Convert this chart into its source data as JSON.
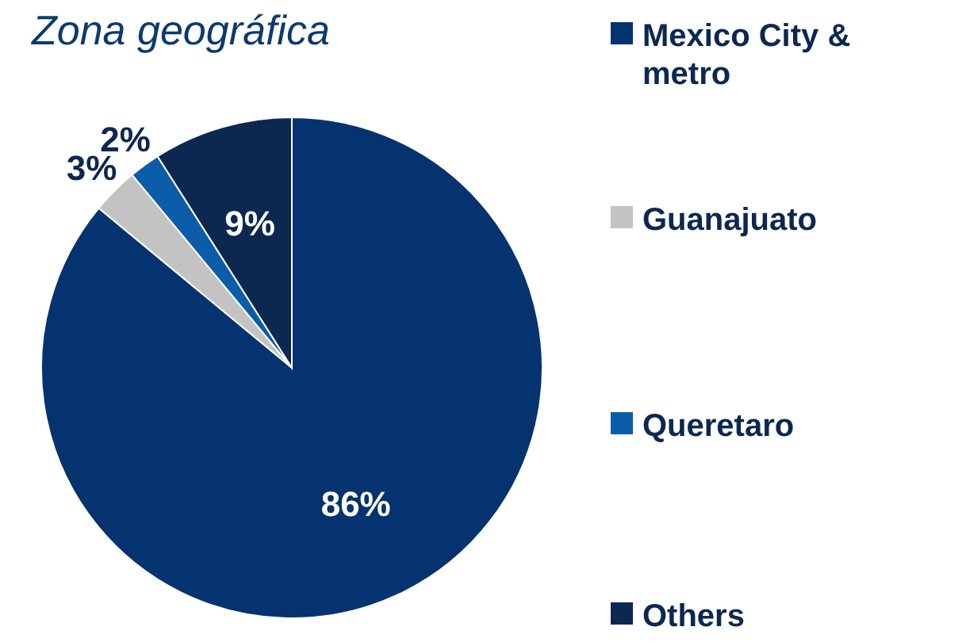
{
  "chart_data": {
    "type": "pie",
    "title": "Zona geográfica",
    "categories": [
      "Mexico City & metro",
      "Guanajuato",
      "Queretaro",
      "Others"
    ],
    "values": [
      86,
      3,
      2,
      9
    ],
    "colors": [
      "#05336f",
      "#c3c3c3",
      "#0b5ca9",
      "#0c2850"
    ],
    "value_labels": [
      "86%",
      "3%",
      "2%",
      "9%"
    ],
    "legend": "right"
  }
}
